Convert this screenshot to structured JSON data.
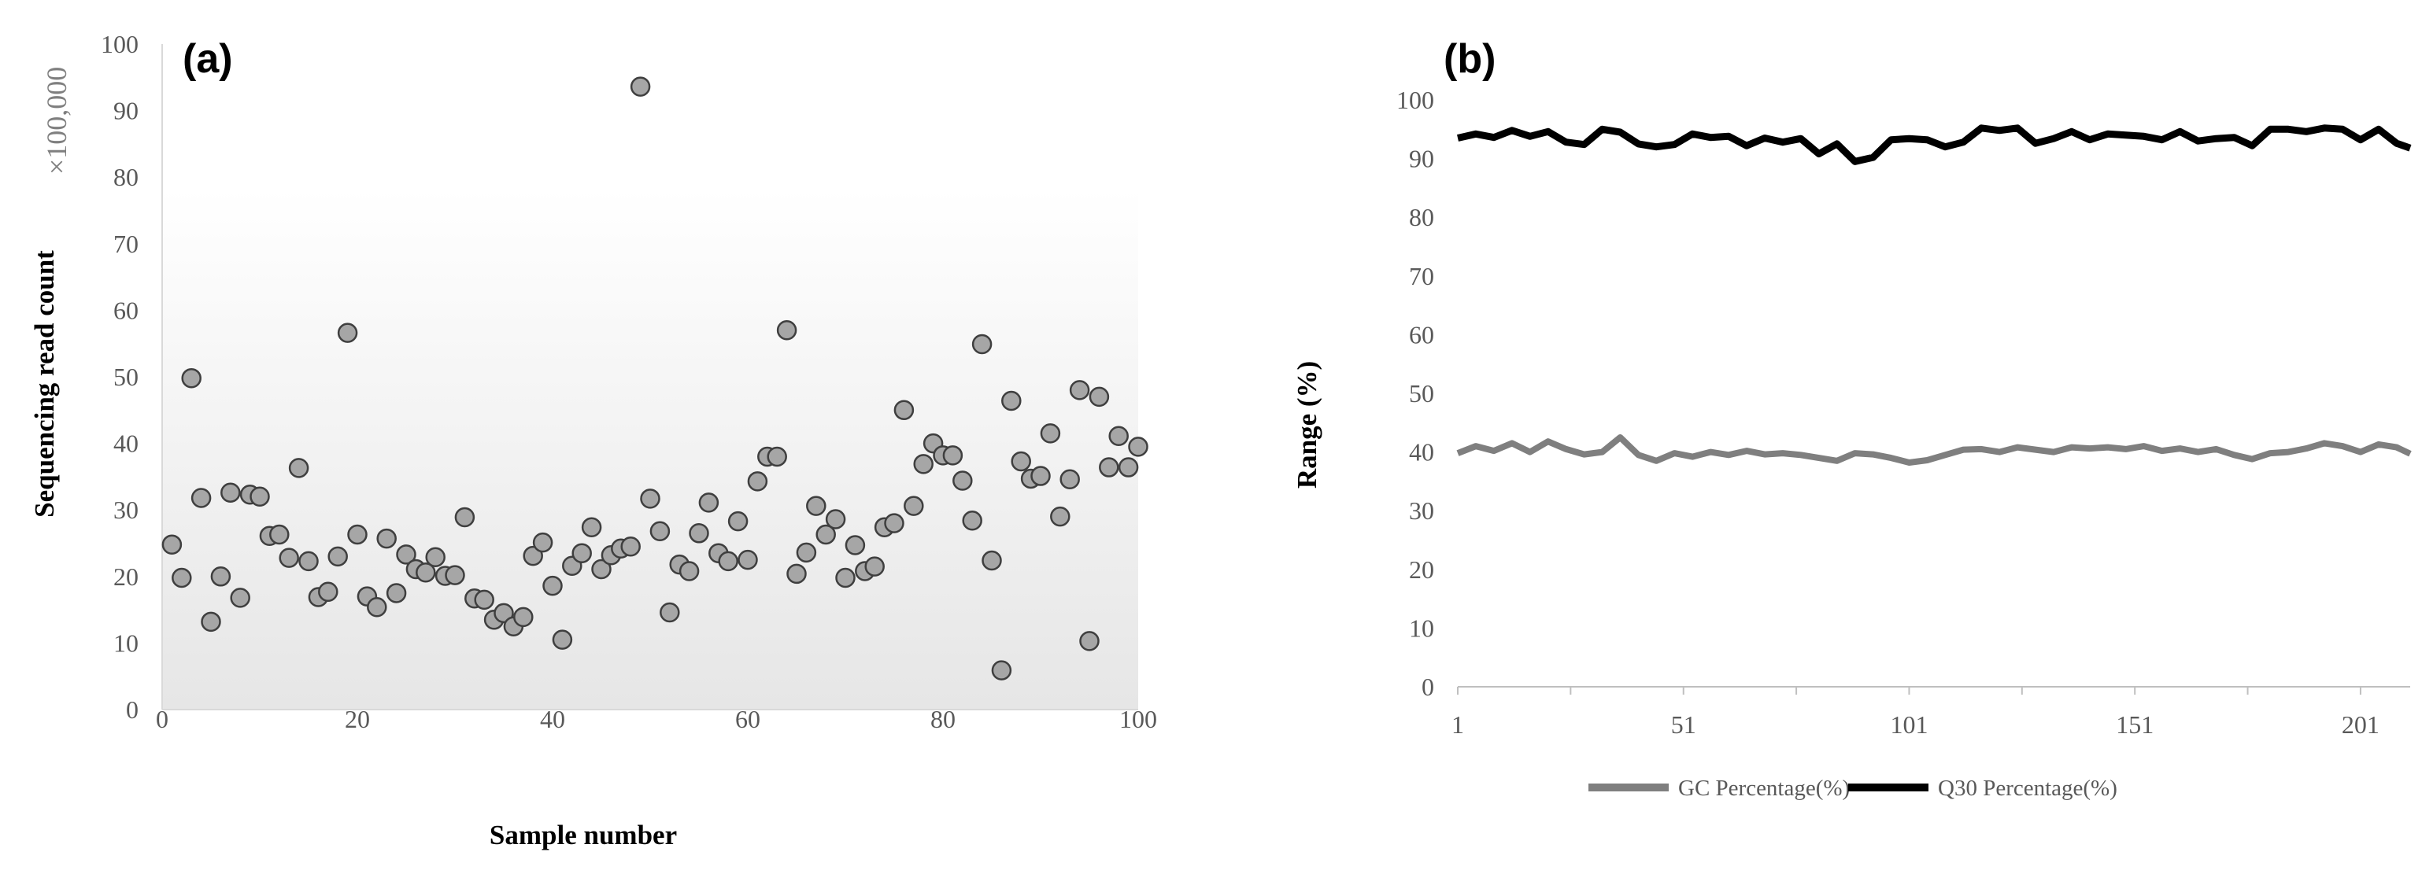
{
  "chart_data": [
    {
      "type": "scatter",
      "panel_label": "(a)",
      "xlabel": "Sample number",
      "ylabel": "Sequencing read count",
      "unit_label": "×100,000",
      "xlim": [
        0,
        100
      ],
      "ylim": [
        0,
        100
      ],
      "x_ticks": [
        0,
        20,
        40,
        60,
        80,
        100
      ],
      "y_ticks": [
        0,
        10,
        20,
        30,
        40,
        50,
        60,
        70,
        80,
        90,
        100
      ],
      "grid": false,
      "marker_color": "#a6a6a6",
      "x": [
        1,
        2,
        3,
        4,
        5,
        6,
        7,
        8,
        9,
        10,
        11,
        12,
        13,
        14,
        15,
        16,
        17,
        18,
        19,
        20,
        21,
        22,
        23,
        24,
        25,
        26,
        27,
        28,
        29,
        30,
        31,
        32,
        33,
        34,
        35,
        36,
        37,
        38,
        39,
        40,
        41,
        42,
        43,
        44,
        45,
        46,
        47,
        48,
        49,
        50,
        51,
        52,
        53,
        54,
        55,
        56,
        57,
        58,
        59,
        60,
        61,
        62,
        63,
        64,
        65,
        66,
        67,
        68,
        69,
        70,
        71,
        72,
        73,
        74,
        75,
        76,
        77,
        78,
        79,
        80,
        81,
        82,
        83,
        84,
        85,
        86,
        87,
        88,
        89,
        90,
        91,
        92,
        93,
        94,
        95,
        96,
        97,
        98,
        99,
        100
      ],
      "y": [
        24.8,
        19.8,
        49.8,
        31.8,
        13.2,
        20.0,
        32.6,
        16.8,
        32.3,
        32.0,
        26.1,
        26.3,
        22.8,
        36.3,
        22.3,
        16.9,
        17.7,
        23.0,
        56.6,
        26.3,
        17.0,
        15.4,
        25.7,
        17.5,
        23.3,
        21.1,
        20.6,
        22.9,
        20.1,
        20.2,
        28.9,
        16.7,
        16.5,
        13.5,
        14.5,
        12.5,
        13.9,
        23.1,
        25.1,
        18.6,
        10.5,
        21.6,
        23.5,
        27.4,
        21.1,
        23.2,
        24.2,
        24.5,
        93.6,
        31.7,
        26.8,
        14.6,
        21.8,
        20.8,
        26.5,
        31.1,
        23.5,
        22.3,
        28.3,
        22.5,
        34.3,
        38.0,
        38.0,
        57.0,
        20.4,
        23.6,
        30.6,
        26.3,
        28.6,
        19.8,
        24.7,
        20.8,
        21.5,
        27.4,
        28.0,
        45.0,
        30.6,
        36.9,
        40.0,
        38.2,
        38.2,
        34.4,
        28.4,
        54.9,
        22.4,
        5.9,
        46.4,
        37.3,
        34.7,
        35.1,
        41.5,
        29.0,
        34.6,
        48.0,
        10.3,
        47.0,
        36.4,
        41.1,
        36.4,
        39.5
      ]
    },
    {
      "type": "line",
      "panel_label": "(b)",
      "ylabel": "Range (%)",
      "xlim": [
        1,
        212
      ],
      "ylim": [
        0,
        100
      ],
      "x_ticks": [
        1,
        51,
        101,
        151,
        201
      ],
      "y_ticks": [
        0,
        10,
        20,
        30,
        40,
        50,
        60,
        70,
        80,
        90,
        100
      ],
      "grid": false,
      "legend_position": "bottom",
      "series": [
        {
          "name": "GC Percentage(%)",
          "color": "#7f7f7f",
          "x": [
            1,
            5,
            9,
            13,
            17,
            21,
            25,
            29,
            33,
            37,
            41,
            45,
            49,
            53,
            57,
            61,
            65,
            69,
            73,
            77,
            81,
            85,
            89,
            93,
            97,
            101,
            105,
            109,
            113,
            117,
            121,
            125,
            129,
            133,
            137,
            141,
            145,
            149,
            153,
            157,
            161,
            165,
            169,
            173,
            177,
            181,
            185,
            189,
            193,
            197,
            201,
            205,
            209,
            212
          ],
          "values": [
            39.8,
            41.0,
            40.2,
            41.5,
            40.0,
            41.8,
            40.5,
            39.6,
            40.0,
            42.5,
            39.5,
            38.5,
            39.8,
            39.2,
            40.0,
            39.5,
            40.2,
            39.6,
            39.8,
            39.5,
            39.0,
            38.5,
            39.8,
            39.6,
            39.0,
            38.2,
            38.6,
            39.5,
            40.4,
            40.5,
            40.0,
            40.8,
            40.4,
            40.0,
            40.8,
            40.6,
            40.8,
            40.5,
            41.0,
            40.2,
            40.6,
            40.0,
            40.5,
            39.5,
            38.8,
            39.8,
            40.0,
            40.6,
            41.5,
            41.0,
            40.0,
            41.3,
            40.8,
            39.7
          ]
        },
        {
          "name": "Q30 Percentage(%)",
          "color": "#000000",
          "x": [
            1,
            5,
            9,
            13,
            17,
            21,
            25,
            29,
            33,
            37,
            41,
            45,
            49,
            53,
            57,
            61,
            65,
            69,
            73,
            77,
            81,
            85,
            89,
            93,
            97,
            101,
            105,
            109,
            113,
            117,
            121,
            125,
            129,
            133,
            137,
            141,
            145,
            149,
            153,
            157,
            161,
            165,
            169,
            173,
            177,
            181,
            185,
            189,
            193,
            197,
            201,
            205,
            209,
            212
          ],
          "values": [
            93.5,
            94.2,
            93.6,
            94.8,
            93.8,
            94.6,
            92.8,
            92.4,
            95.0,
            94.5,
            92.5,
            92.0,
            92.4,
            94.2,
            93.6,
            93.8,
            92.2,
            93.5,
            92.8,
            93.4,
            90.8,
            92.5,
            89.5,
            90.2,
            93.2,
            93.4,
            93.2,
            92.0,
            92.8,
            95.2,
            94.8,
            95.2,
            92.6,
            93.4,
            94.6,
            93.2,
            94.2,
            94.0,
            93.8,
            93.2,
            94.6,
            93.0,
            93.4,
            93.6,
            92.2,
            95.0,
            95.0,
            94.6,
            95.2,
            95.0,
            93.2,
            95.0,
            92.6,
            91.8
          ]
        }
      ]
    }
  ]
}
